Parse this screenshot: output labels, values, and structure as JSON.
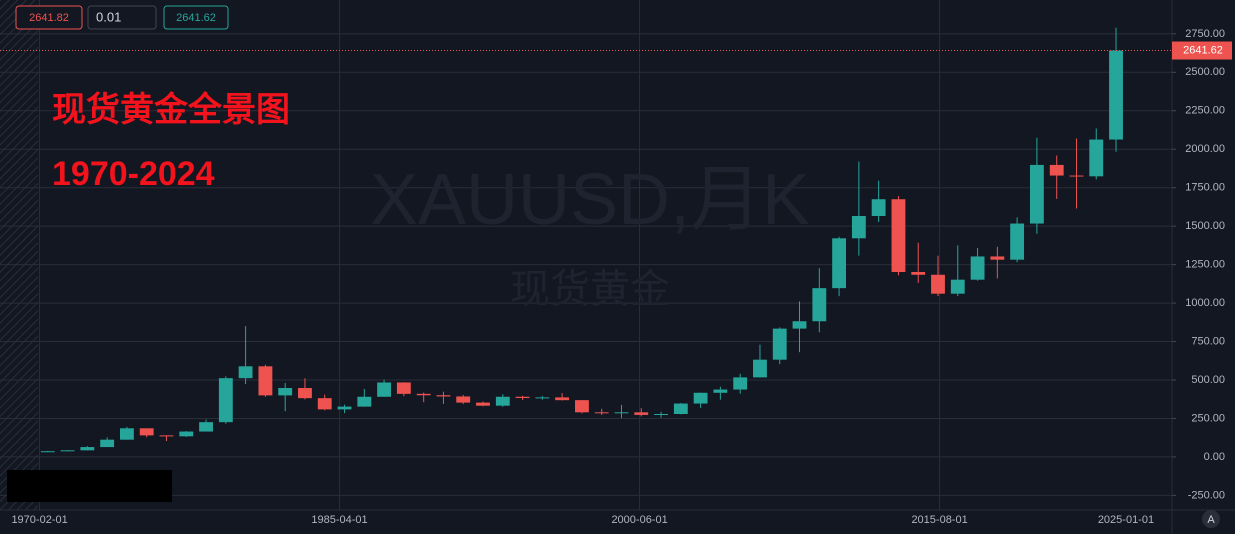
{
  "toolbar": {
    "open": "2641.82",
    "step": "0.01",
    "price": "2641.62",
    "auto_scale": "A"
  },
  "chart_data": {
    "type": "candlestick",
    "title": "现货黄金全景图",
    "subtitle": "1970-2024",
    "watermark": [
      "XAUUSD,月K",
      "现货黄金"
    ],
    "up_color": "#26a69a",
    "down_color": "#ef5350",
    "grid": true,
    "x": [
      "1970-01-01",
      "1971-01-01",
      "1972-01-01",
      "1973-01-01",
      "1974-01-01",
      "1975-01-01",
      "1976-01-01",
      "1977-01-01",
      "1978-01-01",
      "1979-01-01",
      "1980-01-01",
      "1981-01-01",
      "1982-01-01",
      "1983-01-01",
      "1984-01-01",
      "1985-01-01",
      "1986-01-01",
      "1987-01-01",
      "1988-01-01",
      "1989-01-01",
      "1990-01-01",
      "1991-01-01",
      "1992-01-01",
      "1993-01-01",
      "1994-01-01",
      "1995-01-01",
      "1996-01-01",
      "1997-01-01",
      "1998-01-01",
      "1999-01-01",
      "2000-01-01",
      "2001-01-01",
      "2002-01-01",
      "2003-01-01",
      "2004-01-01",
      "2005-01-01",
      "2006-01-01",
      "2007-01-01",
      "2008-01-01",
      "2009-01-01",
      "2010-01-01",
      "2011-01-01",
      "2012-01-01",
      "2013-01-01",
      "2014-01-01",
      "2015-01-01",
      "2016-01-01",
      "2017-01-01",
      "2018-01-01",
      "2019-01-01",
      "2020-01-01",
      "2021-01-01",
      "2022-01-01",
      "2023-01-01",
      "2024-01-01"
    ],
    "open": [
      35,
      37,
      43,
      64,
      112,
      186,
      140,
      134,
      165,
      226,
      512,
      589,
      400,
      448,
      382,
      309,
      327,
      391,
      484,
      410,
      401,
      393,
      353,
      333,
      391,
      383,
      387,
      369,
      290,
      288,
      290,
      273,
      279,
      347,
      417,
      438,
      517,
      632,
      834,
      882,
      1097,
      1421,
      1566,
      1675,
      1202,
      1184,
      1061,
      1152,
      1303,
      1282,
      1517,
      1898,
      1829,
      1824,
      2063
    ],
    "high": [
      39,
      44,
      70,
      127,
      195,
      186,
      140,
      168,
      243,
      524,
      850,
      599,
      481,
      511,
      405,
      340,
      442,
      502,
      485,
      418,
      424,
      403,
      360,
      408,
      397,
      396,
      415,
      370,
      313,
      338,
      317,
      293,
      350,
      418,
      456,
      540,
      730,
      842,
      1011,
      1227,
      1431,
      1920,
      1796,
      1695,
      1392,
      1308,
      1375,
      1358,
      1366,
      1557,
      2075,
      1959,
      2070,
      2135,
      2790
    ],
    "low": [
      35,
      37,
      43,
      64,
      112,
      128,
      103,
      130,
      165,
      216,
      474,
      391,
      297,
      374,
      303,
      285,
      326,
      390,
      395,
      356,
      345,
      344,
      330,
      326,
      370,
      372,
      367,
      283,
      273,
      252,
      263,
      255,
      277,
      319,
      372,
      411,
      517,
      603,
      681,
      810,
      1045,
      1308,
      1527,
      1180,
      1131,
      1046,
      1046,
      1146,
      1160,
      1266,
      1451,
      1677,
      1615,
      1804,
      1984
    ],
    "close": [
      37,
      43,
      64,
      112,
      186,
      140,
      134,
      165,
      226,
      512,
      589,
      400,
      448,
      382,
      309,
      327,
      391,
      484,
      410,
      401,
      393,
      353,
      333,
      391,
      383,
      387,
      369,
      290,
      288,
      290,
      273,
      279,
      347,
      417,
      438,
      517,
      632,
      834,
      882,
      1097,
      1421,
      1566,
      1675,
      1202,
      1184,
      1061,
      1152,
      1303,
      1282,
      1517,
      1898,
      1829,
      1824,
      2063,
      2641.62
    ],
    "last_price": 2641.62,
    "xlim": [
      "1968-02-01",
      "2027-05-01"
    ],
    "xticks": [
      "1970-02-01",
      "1985-04-01",
      "2000-06-01",
      "2015-08-01",
      "2025-01-01"
    ],
    "ylim": [
      -345,
      2970
    ],
    "yticks": [
      {
        "value": -250,
        "label": "-250.00"
      },
      {
        "value": 0,
        "label": "0.00"
      },
      {
        "value": 250,
        "label": "250.00"
      },
      {
        "value": 500,
        "label": "500.00"
      },
      {
        "value": 750,
        "label": "750.00"
      },
      {
        "value": 1000,
        "label": "1000.00"
      },
      {
        "value": 1250,
        "label": "1250.00"
      },
      {
        "value": 1500,
        "label": "1500.00"
      },
      {
        "value": 1750,
        "label": "1750.00"
      },
      {
        "value": 2000,
        "label": "2000.00"
      },
      {
        "value": 2250,
        "label": "2250.00"
      },
      {
        "value": 2500,
        "label": "2500.00"
      },
      {
        "value": 2750,
        "label": "2750.00"
      }
    ]
  }
}
